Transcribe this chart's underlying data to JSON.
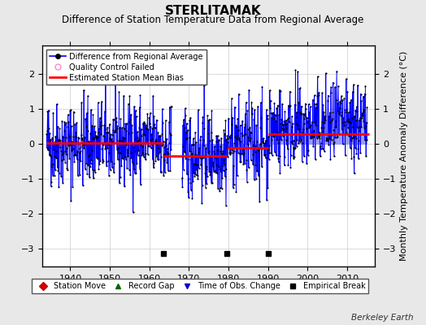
{
  "title": "STERLITAMAK",
  "subtitle": "Difference of Station Temperature Data from Regional Average",
  "ylabel": "Monthly Temperature Anomaly Difference (°C)",
  "background_color": "#e8e8e8",
  "plot_bg_color": "#ffffff",
  "grid_color": "#cccccc",
  "ylim": [
    -3.5,
    2.8
  ],
  "xlim": [
    1933,
    2017
  ],
  "xticks": [
    1940,
    1950,
    1960,
    1970,
    1980,
    1990,
    2000,
    2010
  ],
  "yticks": [
    -3,
    -2,
    -1,
    0,
    1,
    2
  ],
  "line_color": "#0000ff",
  "dot_color": "#000000",
  "bias_color": "#ff0000",
  "fill_color": "#8888ff",
  "title_fontsize": 11,
  "subtitle_fontsize": 8.5,
  "tick_fontsize": 8,
  "ylabel_fontsize": 8,
  "watermark": "Berkeley Earth",
  "seed": 42,
  "bias_segments": [
    {
      "x_start": 1934.0,
      "x_end": 1963.5,
      "bias": 0.02
    },
    {
      "x_start": 1963.5,
      "x_end": 1979.5,
      "bias": -0.35
    },
    {
      "x_start": 1979.5,
      "x_end": 1990.0,
      "bias": -0.12
    },
    {
      "x_start": 1990.0,
      "x_end": 2015.5,
      "bias": 0.28
    }
  ],
  "empirical_breaks": [
    1963.5,
    1979.5,
    1990.0
  ],
  "data_start": 1934,
  "data_end": 2015,
  "monthly_std": 0.62
}
